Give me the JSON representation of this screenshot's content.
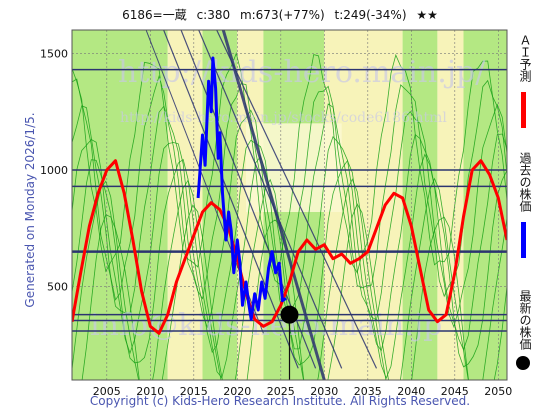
{
  "header": {
    "code_name": "6186=一蔵",
    "c_label": "c:380",
    "m_label": "m:673(+77%)",
    "t_label": "t:249(-34%)",
    "stars": "★★"
  },
  "generated_text": "Generated on Monday 2026/1/5.",
  "copyright_text": "Copyright (c) Kids-Hero Research Institute. All Rights Reserved.",
  "watermark": {
    "line1": "http://kids-hero.main.jp/",
    "line2": "http://kids-hero.main.jp/stocks/code6186.html",
    "line3": "info@kids-hero.main.jp"
  },
  "legend": {
    "ai_label": "ＡＩ予測",
    "past_label": "過去の株価",
    "latest_label": "最新の株価"
  },
  "colors": {
    "ai": "#ff0000",
    "past": "#0000ff",
    "latest": "#000000",
    "green_band": "#9be05a",
    "green_line": "#16a016",
    "yellow_band": "#f5f0a8",
    "navy_line": "#2c3470"
  },
  "chart_data": {
    "type": "line",
    "x_ticks": [
      "2005",
      "2010",
      "2015",
      "2020",
      "2025",
      "2030",
      "2035",
      "2040",
      "2045",
      "2050"
    ],
    "y_ticks": [
      "500",
      "1000",
      "1500"
    ],
    "xlim": [
      2001,
      2051
    ],
    "ylim": [
      100,
      1600
    ],
    "grid": true,
    "horizontal_levels": [
      1430,
      1000,
      930,
      650,
      380,
      355,
      310
    ],
    "latest_point": {
      "x": 2026.0,
      "y": 380
    },
    "series": [
      {
        "name": "ＡＩ予測",
        "x": [
          2001,
          2002,
          2003,
          2004,
          2005,
          2006,
          2007,
          2008,
          2009,
          2010,
          2011,
          2012,
          2013,
          2014,
          2015,
          2016,
          2017,
          2018,
          2019,
          2020,
          2021,
          2022,
          2023,
          2024,
          2025,
          2026,
          2027,
          2028,
          2029,
          2030,
          2031,
          2032,
          2033,
          2034,
          2035,
          2036,
          2037,
          2038,
          2039,
          2040,
          2041,
          2042,
          2043,
          2044,
          2045,
          2046,
          2047,
          2048,
          2049,
          2050,
          2051
        ],
        "y": [
          350,
          560,
          760,
          900,
          1000,
          1040,
          900,
          700,
          480,
          330,
          300,
          380,
          520,
          620,
          720,
          820,
          860,
          830,
          750,
          620,
          470,
          360,
          330,
          350,
          420,
          520,
          650,
          700,
          660,
          680,
          620,
          640,
          600,
          620,
          650,
          750,
          850,
          900,
          880,
          760,
          580,
          400,
          350,
          380,
          560,
          800,
          1000,
          1040,
          980,
          880,
          700
        ]
      },
      {
        "name": "過去の株価",
        "x": [
          2015.5,
          2016.0,
          2016.3,
          2016.7,
          2017.0,
          2017.2,
          2017.5,
          2017.8,
          2018.0,
          2018.3,
          2018.7,
          2019.0,
          2019.3,
          2019.6,
          2020.0,
          2020.3,
          2020.6,
          2021.0,
          2021.3,
          2021.6,
          2022.0,
          2022.4,
          2022.8,
          2023.2,
          2023.6,
          2024.0,
          2024.4,
          2024.8,
          2025.2,
          2025.6
        ],
        "y": [
          880,
          1150,
          1020,
          1380,
          1250,
          1480,
          1350,
          1050,
          1160,
          900,
          700,
          820,
          740,
          560,
          700,
          600,
          420,
          520,
          430,
          360,
          470,
          400,
          520,
          450,
          580,
          650,
          560,
          600,
          440,
          450
        ]
      }
    ]
  }
}
